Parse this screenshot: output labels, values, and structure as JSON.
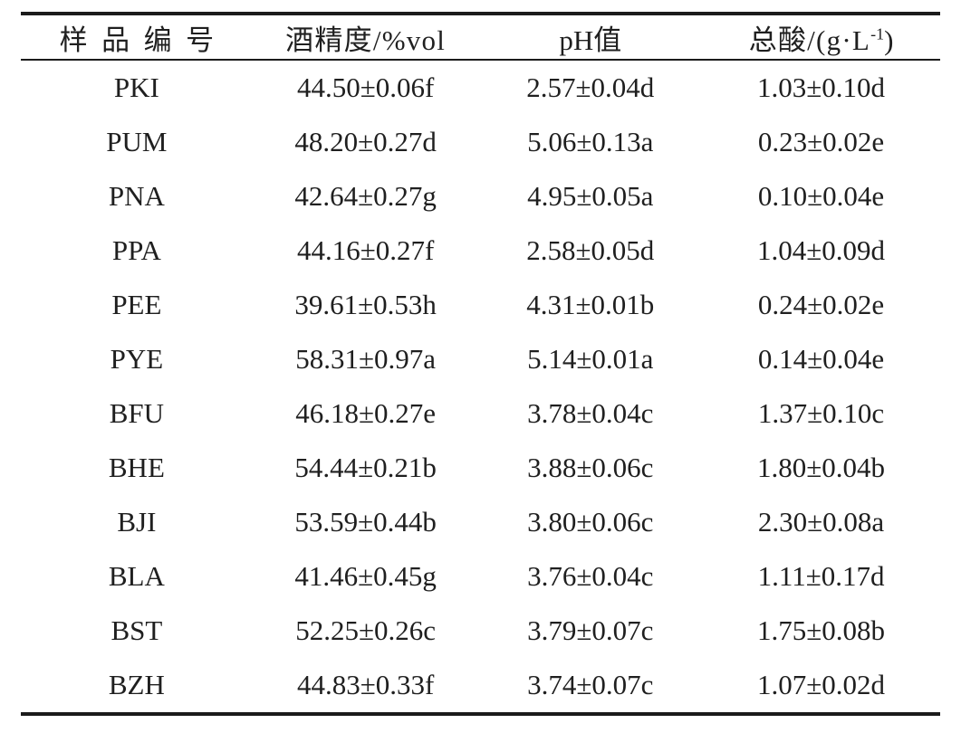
{
  "page": {
    "background": "#ffffff",
    "text_color": "#1f1f1f",
    "rule_color": "#1b1b1b"
  },
  "table": {
    "columns": [
      {
        "id": "sample",
        "label": "样品编号"
      },
      {
        "id": "alcohol",
        "label": "酒精度/%vol"
      },
      {
        "id": "ph",
        "label": "pH值"
      },
      {
        "id": "acid",
        "label_prefix": "总酸/(g·L",
        "label_sup": "-1",
        "label_suffix": ")"
      }
    ],
    "rows": [
      {
        "sample": "PKI",
        "alcohol": "44.50±0.06f",
        "ph": "2.57±0.04d",
        "acid": "1.03±0.10d"
      },
      {
        "sample": "PUM",
        "alcohol": "48.20±0.27d",
        "ph": "5.06±0.13a",
        "acid": "0.23±0.02e"
      },
      {
        "sample": "PNA",
        "alcohol": "42.64±0.27g",
        "ph": "4.95±0.05a",
        "acid": "0.10±0.04e"
      },
      {
        "sample": "PPA",
        "alcohol": "44.16±0.27f",
        "ph": "2.58±0.05d",
        "acid": "1.04±0.09d"
      },
      {
        "sample": "PEE",
        "alcohol": "39.61±0.53h",
        "ph": "4.31±0.01b",
        "acid": "0.24±0.02e"
      },
      {
        "sample": "PYE",
        "alcohol": "58.31±0.97a",
        "ph": "5.14±0.01a",
        "acid": "0.14±0.04e"
      },
      {
        "sample": "BFU",
        "alcohol": "46.18±0.27e",
        "ph": "3.78±0.04c",
        "acid": "1.37±0.10c"
      },
      {
        "sample": "BHE",
        "alcohol": "54.44±0.21b",
        "ph": "3.88±0.06c",
        "acid": "1.80±0.04b"
      },
      {
        "sample": "BJI",
        "alcohol": "53.59±0.44b",
        "ph": "3.80±0.06c",
        "acid": "2.30±0.08a"
      },
      {
        "sample": "BLA",
        "alcohol": "41.46±0.45g",
        "ph": "3.76±0.04c",
        "acid": "1.11±0.17d"
      },
      {
        "sample": "BST",
        "alcohol": "52.25±0.26c",
        "ph": "3.79±0.07c",
        "acid": "1.75±0.08b"
      },
      {
        "sample": "BZH",
        "alcohol": "44.83±0.33f",
        "ph": "3.74±0.07c",
        "acid": "1.07±0.02d"
      }
    ]
  }
}
